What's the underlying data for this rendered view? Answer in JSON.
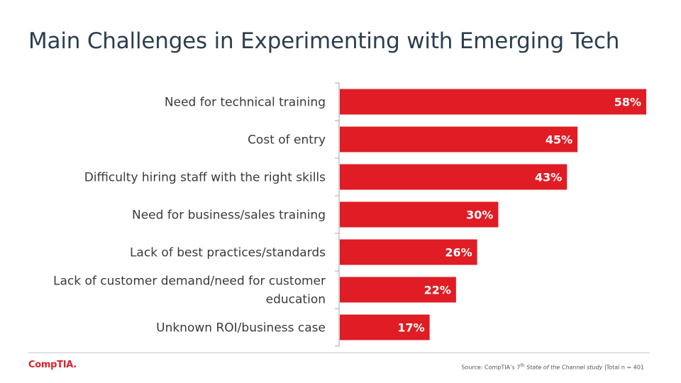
{
  "title": "Main Challenges in Experimenting with Emerging Tech",
  "logo": "CompTIA.",
  "source": {
    "prefix": "Source: CompTIA’s 7",
    "sup": "th",
    "italic": "State of the Channel study",
    "suffix": " |Total n = 401"
  },
  "colors": {
    "bar": "#e01c24",
    "axis": "#a6a6a6"
  },
  "chart_data": {
    "type": "bar",
    "orientation": "horizontal",
    "categories": [
      [
        "Need for technical training"
      ],
      [
        "Cost of entry"
      ],
      [
        "Difficulty hiring staff with the right skills"
      ],
      [
        "Need for business/sales training"
      ],
      [
        "Lack of best practices/standards"
      ],
      [
        "Lack of customer demand/need for customer",
        "education"
      ],
      [
        "Unknown ROI/business case"
      ]
    ],
    "values": [
      58,
      45,
      43,
      30,
      26,
      22,
      17
    ],
    "value_labels": [
      "58%",
      "45%",
      "43%",
      "30%",
      "26%",
      "22%",
      "17%"
    ],
    "xlim": [
      0,
      58
    ],
    "grid": false
  }
}
